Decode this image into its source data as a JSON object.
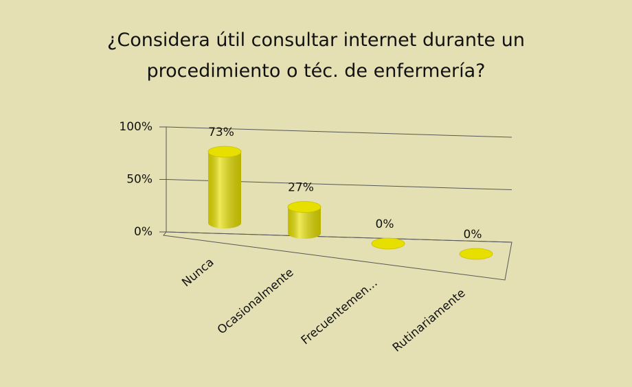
{
  "chart_data": {
    "type": "bar",
    "title": "¿Considera útil consultar internet durante un procedimiento o téc. de enfermería?",
    "categories": [
      "Nunca",
      "Ocasionalmente",
      "Frecuentemen...",
      "Rutinariamente"
    ],
    "values": [
      73,
      27,
      0,
      0
    ],
    "value_labels": [
      "73%",
      "27%",
      "0%",
      "0%"
    ],
    "color": "#e6df00",
    "ylim": [
      0,
      100
    ],
    "yticks": [
      {
        "value": 0,
        "label": "0%"
      },
      {
        "value": 50,
        "label": "50%"
      },
      {
        "value": 100,
        "label": "100%"
      }
    ],
    "grid": true
  }
}
